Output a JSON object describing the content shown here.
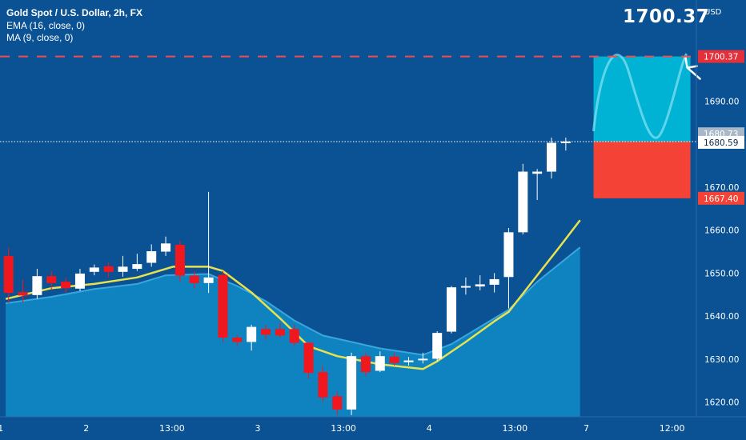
{
  "legend": {
    "title": "Gold Spot / U.S. Dollar, 2h, FX",
    "ema_label": "EMA (16, close, 0)",
    "ma_label": "MA (9, close, 0)"
  },
  "target_label": "1700.37",
  "colors": {
    "background": "#0a5294",
    "up_candle": "#ffffff",
    "down_candle": "#f0171f",
    "ema_area": "#0f86c2",
    "ma_line": "#e8e24d",
    "target_zone": "#00b3d4",
    "stop_zone": "#f44336",
    "alert_line": "#ef4d52"
  },
  "chart_data": {
    "type": "candlestick",
    "title": "Gold Spot / U.S. Dollar, 2h, FX",
    "currency": "USD",
    "y_axis": {
      "range": [
        1616.6,
        1713.5
      ],
      "ticks": [
        "1620.00",
        "1630.00",
        "1640.00",
        "1650.00",
        "1660.00",
        "1670.00",
        "1680.00",
        "1690.00"
      ]
    },
    "x_axis": {
      "ticks": [
        "1",
        "2",
        "13:00",
        "3",
        "13:00",
        "4",
        "13:00",
        "7",
        "12:00"
      ],
      "tick_positions": [
        0,
        6,
        12,
        18,
        24,
        30,
        36,
        41,
        47
      ]
    },
    "candles": [
      {
        "i": 0,
        "o": 1654.0,
        "c": 1645.4,
        "h": 1656.0,
        "l": 1643.0
      },
      {
        "i": 1,
        "o": 1645.6,
        "c": 1644.8,
        "h": 1648.5,
        "l": 1643.2
      },
      {
        "i": 2,
        "o": 1644.9,
        "c": 1649.3,
        "h": 1651.0,
        "l": 1644.0
      },
      {
        "i": 3,
        "o": 1649.3,
        "c": 1647.7,
        "h": 1650.5,
        "l": 1646.0
      },
      {
        "i": 4,
        "o": 1648.0,
        "c": 1646.5,
        "h": 1649.0,
        "l": 1645.5
      },
      {
        "i": 5,
        "o": 1646.4,
        "c": 1649.9,
        "h": 1651.0,
        "l": 1645.8
      },
      {
        "i": 6,
        "o": 1650.3,
        "c": 1651.3,
        "h": 1652.0,
        "l": 1649.5
      },
      {
        "i": 7,
        "o": 1651.6,
        "c": 1650.3,
        "h": 1652.5,
        "l": 1649.0
      },
      {
        "i": 8,
        "o": 1650.3,
        "c": 1651.5,
        "h": 1654.0,
        "l": 1649.2
      },
      {
        "i": 9,
        "o": 1651.0,
        "c": 1652.1,
        "h": 1654.5,
        "l": 1650.5
      },
      {
        "i": 10,
        "o": 1652.4,
        "c": 1655.1,
        "h": 1656.7,
        "l": 1651.5
      },
      {
        "i": 11,
        "o": 1655.0,
        "c": 1656.9,
        "h": 1658.5,
        "l": 1654.0
      },
      {
        "i": 12,
        "o": 1656.6,
        "c": 1649.4,
        "h": 1657.5,
        "l": 1648.0
      },
      {
        "i": 13,
        "o": 1649.4,
        "c": 1647.7,
        "h": 1650.5,
        "l": 1646.5
      },
      {
        "i": 14,
        "o": 1647.7,
        "c": 1649.0,
        "h": 1668.9,
        "l": 1645.4
      },
      {
        "i": 15,
        "o": 1649.6,
        "c": 1635.0,
        "h": 1650.5,
        "l": 1634.0
      },
      {
        "i": 16,
        "o": 1635.0,
        "c": 1634.0,
        "h": 1635.6,
        "l": 1633.0
      },
      {
        "i": 17,
        "o": 1634.0,
        "c": 1637.5,
        "h": 1638.0,
        "l": 1632.0
      },
      {
        "i": 18,
        "o": 1637.0,
        "c": 1635.7,
        "h": 1638.0,
        "l": 1634.5
      },
      {
        "i": 19,
        "o": 1637.0,
        "c": 1635.5,
        "h": 1638.5,
        "l": 1635.0
      },
      {
        "i": 20,
        "o": 1637.0,
        "c": 1633.8,
        "h": 1638.0,
        "l": 1633.0
      },
      {
        "i": 21,
        "o": 1633.8,
        "c": 1626.8,
        "h": 1634.0,
        "l": 1625.5
      },
      {
        "i": 22,
        "o": 1627.0,
        "c": 1621.1,
        "h": 1628.5,
        "l": 1620.0
      },
      {
        "i": 23,
        "o": 1621.4,
        "c": 1618.3,
        "h": 1622.5,
        "l": 1617.0
      },
      {
        "i": 24,
        "o": 1618.3,
        "c": 1630.7,
        "h": 1631.5,
        "l": 1617.0
      },
      {
        "i": 25,
        "o": 1630.7,
        "c": 1627.0,
        "h": 1631.5,
        "l": 1626.0
      },
      {
        "i": 26,
        "o": 1627.3,
        "c": 1630.7,
        "h": 1631.8,
        "l": 1627.0
      },
      {
        "i": 27,
        "o": 1630.6,
        "c": 1629.1,
        "h": 1631.5,
        "l": 1628.5
      },
      {
        "i": 28,
        "o": 1629.3,
        "c": 1629.7,
        "h": 1630.5,
        "l": 1628.5
      },
      {
        "i": 29,
        "o": 1629.9,
        "c": 1630.1,
        "h": 1631.5,
        "l": 1629.0
      },
      {
        "i": 30,
        "o": 1630.1,
        "c": 1636.1,
        "h": 1636.5,
        "l": 1629.5
      },
      {
        "i": 31,
        "o": 1636.4,
        "c": 1646.7,
        "h": 1647.0,
        "l": 1636.0
      },
      {
        "i": 32,
        "o": 1646.9,
        "c": 1647.0,
        "h": 1649.0,
        "l": 1645.0
      },
      {
        "i": 33,
        "o": 1646.9,
        "c": 1647.4,
        "h": 1649.5,
        "l": 1646.0
      },
      {
        "i": 34,
        "o": 1647.3,
        "c": 1648.6,
        "h": 1650.0,
        "l": 1645.5
      },
      {
        "i": 35,
        "o": 1649.1,
        "c": 1659.5,
        "h": 1660.5,
        "l": 1641.8
      },
      {
        "i": 36,
        "o": 1659.5,
        "c": 1673.6,
        "h": 1675.4,
        "l": 1659.0
      },
      {
        "i": 37,
        "o": 1673.1,
        "c": 1673.6,
        "h": 1674.2,
        "l": 1667.0
      },
      {
        "i": 38,
        "o": 1673.6,
        "c": 1680.3,
        "h": 1681.5,
        "l": 1672.0
      },
      {
        "i": 39,
        "o": 1680.3,
        "c": 1680.6,
        "h": 1681.5,
        "l": 1678.5
      }
    ],
    "ma_9": [
      {
        "i": -0.2,
        "v": 1644.0
      },
      {
        "i": 3,
        "v": 1646.5
      },
      {
        "i": 6,
        "v": 1647.5
      },
      {
        "i": 9,
        "v": 1649.0
      },
      {
        "i": 11.5,
        "v": 1651.5
      },
      {
        "i": 14,
        "v": 1651.5
      },
      {
        "i": 15,
        "v": 1650.5
      },
      {
        "i": 17,
        "v": 1645.5
      },
      {
        "i": 19,
        "v": 1639.5
      },
      {
        "i": 21,
        "v": 1633.0
      },
      {
        "i": 23,
        "v": 1630.7
      },
      {
        "i": 26,
        "v": 1628.8
      },
      {
        "i": 29,
        "v": 1627.7
      },
      {
        "i": 30,
        "v": 1629.5
      },
      {
        "i": 32,
        "v": 1634.0
      },
      {
        "i": 34,
        "v": 1638.8
      },
      {
        "i": 35,
        "v": 1641.0
      },
      {
        "i": 37,
        "v": 1649.5
      },
      {
        "i": 38.5,
        "v": 1655.8
      },
      {
        "i": 40,
        "v": 1662.3
      }
    ],
    "ema_16": [
      {
        "i": -0.2,
        "v": 1643.0
      },
      {
        "i": 3,
        "v": 1644.5
      },
      {
        "i": 6,
        "v": 1646.3
      },
      {
        "i": 9,
        "v": 1647.5
      },
      {
        "i": 11,
        "v": 1649.5
      },
      {
        "i": 14,
        "v": 1649.8
      },
      {
        "i": 16,
        "v": 1647.0
      },
      {
        "i": 18,
        "v": 1643.5
      },
      {
        "i": 20,
        "v": 1639.0
      },
      {
        "i": 22,
        "v": 1635.5
      },
      {
        "i": 24,
        "v": 1634.0
      },
      {
        "i": 26,
        "v": 1632.5
      },
      {
        "i": 29,
        "v": 1631.0
      },
      {
        "i": 31,
        "v": 1633.5
      },
      {
        "i": 33,
        "v": 1637.5
      },
      {
        "i": 35,
        "v": 1641.5
      },
      {
        "i": 37,
        "v": 1648.0
      },
      {
        "i": 38.5,
        "v": 1652.0
      },
      {
        "i": 40,
        "v": 1656.0
      }
    ],
    "position": {
      "entry": 1680.59,
      "target": 1700.37,
      "stop": 1667.4,
      "start_index": 41,
      "end_index": 47.5
    },
    "price_labels": [
      {
        "label": "1700.37",
        "value": 1700.37,
        "kind": "target"
      },
      {
        "label": "1680.73",
        "value": 1680.73,
        "kind": "marker"
      },
      {
        "label": "1680.59",
        "value": 1680.59,
        "kind": "entry"
      },
      {
        "label": "1667.40",
        "value": 1667.4,
        "kind": "stop"
      }
    ]
  }
}
